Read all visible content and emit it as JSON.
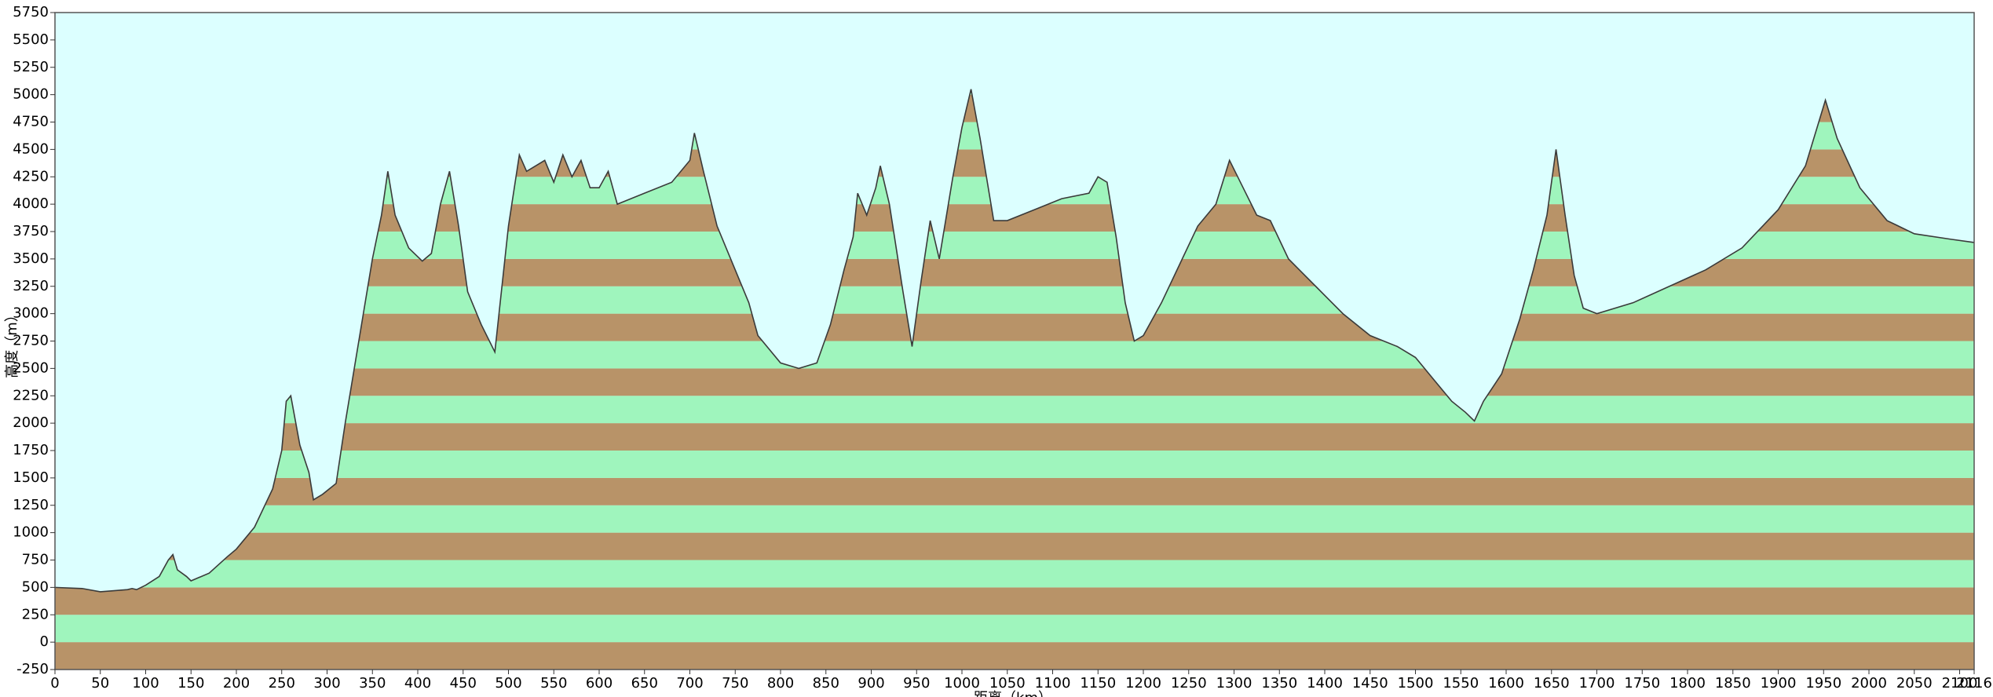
{
  "chart_data": {
    "type": "area",
    "x_label": "距离（km）",
    "y_label": "高度（m）",
    "x": [
      0,
      30,
      50,
      80,
      85,
      90,
      100,
      115,
      125,
      130,
      135,
      145,
      150,
      170,
      190,
      200,
      220,
      240,
      250,
      255,
      260,
      270,
      280,
      285,
      295,
      310,
      320,
      330,
      340,
      350,
      360,
      367,
      375,
      390,
      405,
      415,
      425,
      435,
      445,
      455,
      470,
      485,
      500,
      512,
      520,
      530,
      540,
      550,
      560,
      570,
      580,
      590,
      600,
      610,
      620,
      650,
      680,
      700,
      705,
      715,
      730,
      750,
      765,
      775,
      800,
      820,
      840,
      855,
      870,
      880,
      885,
      895,
      905,
      910,
      920,
      935,
      945,
      955,
      965,
      975,
      990,
      1000,
      1010,
      1020,
      1035,
      1050,
      1080,
      1110,
      1140,
      1150,
      1160,
      1170,
      1180,
      1190,
      1200,
      1220,
      1240,
      1260,
      1280,
      1295,
      1310,
      1325,
      1340,
      1360,
      1390,
      1420,
      1450,
      1480,
      1500,
      1520,
      1540,
      1555,
      1565,
      1575,
      1595,
      1615,
      1630,
      1645,
      1655,
      1665,
      1675,
      1685,
      1700,
      1740,
      1780,
      1820,
      1860,
      1900,
      1930,
      1952,
      1965,
      1990,
      2020,
      2050,
      2090,
      2116
    ],
    "values": [
      500,
      490,
      460,
      480,
      490,
      480,
      520,
      600,
      750,
      800,
      660,
      600,
      560,
      630,
      780,
      850,
      1050,
      1400,
      1750,
      2200,
      2250,
      1800,
      1550,
      1300,
      1350,
      1450,
      2000,
      2500,
      3000,
      3500,
      3900,
      4300,
      3900,
      3600,
      3480,
      3550,
      4000,
      4300,
      3800,
      3200,
      2900,
      2650,
      3800,
      4450,
      4300,
      4350,
      4400,
      4200,
      4450,
      4250,
      4400,
      4150,
      4150,
      4300,
      4000,
      4100,
      4200,
      4400,
      4650,
      4300,
      3800,
      3400,
      3100,
      2800,
      2550,
      2500,
      2550,
      2900,
      3400,
      3700,
      4100,
      3900,
      4150,
      4350,
      4000,
      3200,
      2700,
      3300,
      3850,
      3500,
      4250,
      4700,
      5050,
      4600,
      3850,
      3850,
      3950,
      4050,
      4100,
      4250,
      4200,
      3700,
      3100,
      2750,
      2800,
      3100,
      3450,
      3800,
      4000,
      4400,
      4150,
      3900,
      3850,
      3500,
      3250,
      3000,
      2800,
      2700,
      2600,
      2400,
      2200,
      2100,
      2020,
      2200,
      2450,
      2950,
      3400,
      3900,
      4500,
      3900,
      3350,
      3050,
      3000,
      3100,
      3250,
      3400,
      3600,
      3950,
      4350,
      4950,
      4600,
      4150,
      3850,
      3730,
      3680,
      3650
    ],
    "xlim": [
      0,
      2116
    ],
    "ylim": [
      -250,
      5750
    ],
    "xticks": [
      0,
      50,
      100,
      150,
      200,
      250,
      300,
      350,
      400,
      450,
      500,
      550,
      600,
      650,
      700,
      750,
      800,
      850,
      900,
      950,
      1000,
      1050,
      1100,
      1150,
      1200,
      1250,
      1300,
      1350,
      1400,
      1450,
      1500,
      1550,
      1600,
      1650,
      1700,
      1750,
      1800,
      1850,
      1900,
      1950,
      2000,
      2050,
      2100,
      2116
    ],
    "yticks": [
      -250,
      0,
      250,
      500,
      750,
      1000,
      1250,
      1500,
      1750,
      2000,
      2250,
      2500,
      2750,
      3000,
      3250,
      3500,
      3750,
      4000,
      4250,
      4500,
      4750,
      5000,
      5250,
      5500,
      5750
    ],
    "stripe_colors": [
      "#b89368",
      "#9ff5bd"
    ],
    "background": "#dcffff",
    "line_color": "#3a3a3a"
  }
}
